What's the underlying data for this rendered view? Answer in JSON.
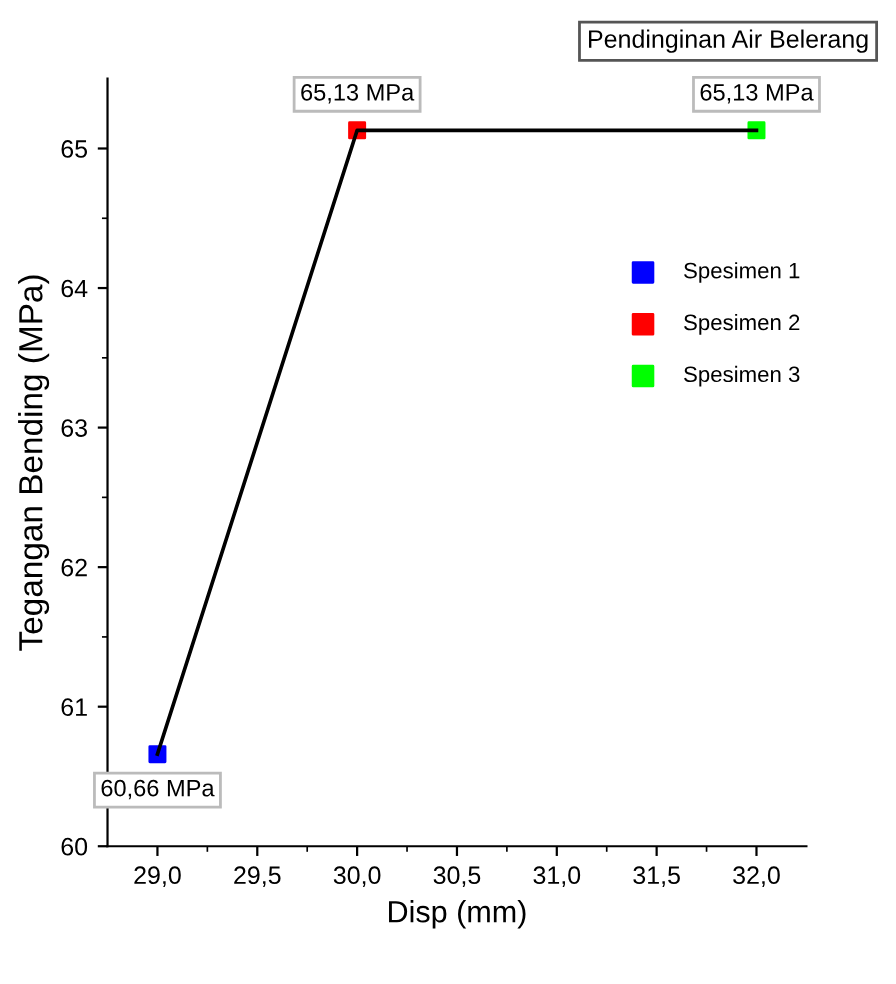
{
  "chart_data": {
    "type": "scatter",
    "title": "Pendinginan Air Belerang",
    "xlabel": "Disp (mm)",
    "ylabel": "Tegangan Bending (MPa)",
    "xlim": [
      28.75,
      32.25
    ],
    "ylim": [
      60,
      65.5
    ],
    "xticks": [
      {
        "value": 29,
        "label": "29,0"
      },
      {
        "value": 29.25,
        "label": null
      },
      {
        "value": 29.5,
        "label": "29,5"
      },
      {
        "value": 29.75,
        "label": null
      },
      {
        "value": 30,
        "label": "30,0"
      },
      {
        "value": 30.25,
        "label": null
      },
      {
        "value": 30.5,
        "label": "30,5"
      },
      {
        "value": 30.75,
        "label": null
      },
      {
        "value": 31,
        "label": "31,0"
      },
      {
        "value": 31.25,
        "label": null
      },
      {
        "value": 31.5,
        "label": "31,5"
      },
      {
        "value": 31.75,
        "label": null
      },
      {
        "value": 32,
        "label": "32,0"
      }
    ],
    "yticks": [
      60,
      {
        "value": 60.5,
        "label": null
      },
      61,
      {
        "value": 61.5,
        "label": null
      },
      62,
      {
        "value": 62.5,
        "label": null
      },
      63,
      {
        "value": 63.5,
        "label": null
      },
      64,
      {
        "value": 64.5,
        "label": null
      },
      65
    ],
    "grid": false,
    "legend": "right",
    "marker": "square",
    "series": [
      {
        "type": "line",
        "color": "#000000",
        "x": [
          29,
          30,
          32
        ],
        "values": [
          60.66,
          65.13,
          65.13
        ],
        "marker": "none"
      },
      {
        "name": "Spesimen 1",
        "color": "#0000ff",
        "x": [
          29
        ],
        "values": [
          60.66
        ],
        "value_labels": [
          "60,66 MPa"
        ]
      },
      {
        "name": "Spesimen 2",
        "color": "#ff0000",
        "x": [
          30
        ],
        "values": [
          65.13
        ],
        "value_labels": [
          "65,13 MPa"
        ]
      },
      {
        "name": "Spesimen 3",
        "color": "#00ff00",
        "x": [
          32
        ],
        "values": [
          65.13
        ],
        "value_labels": [
          "65,13 MPa"
        ]
      }
    ]
  }
}
